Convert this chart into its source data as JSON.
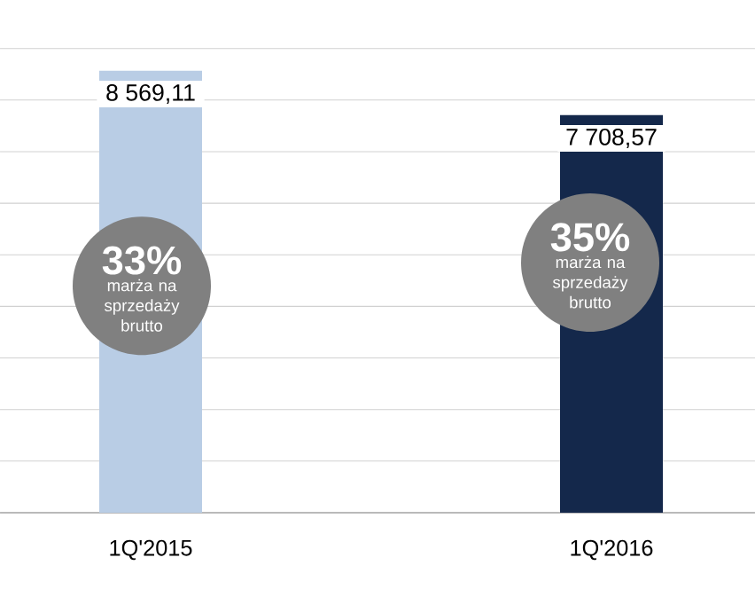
{
  "chart_data": {
    "type": "bar",
    "categories": [
      "1Q'2015",
      "1Q'2016"
    ],
    "values": [
      8569.11,
      7708.57
    ],
    "colors": [
      "#b9cde5",
      "#14284b"
    ],
    "value_labels": [
      "8 569,11",
      "7 708,57"
    ],
    "grid": "y",
    "tick_labels": "x",
    "annotations": [
      "33%",
      "marża na sprzedaży brutto",
      "35%",
      "marża na sprzedaży brutto"
    ]
  }
}
